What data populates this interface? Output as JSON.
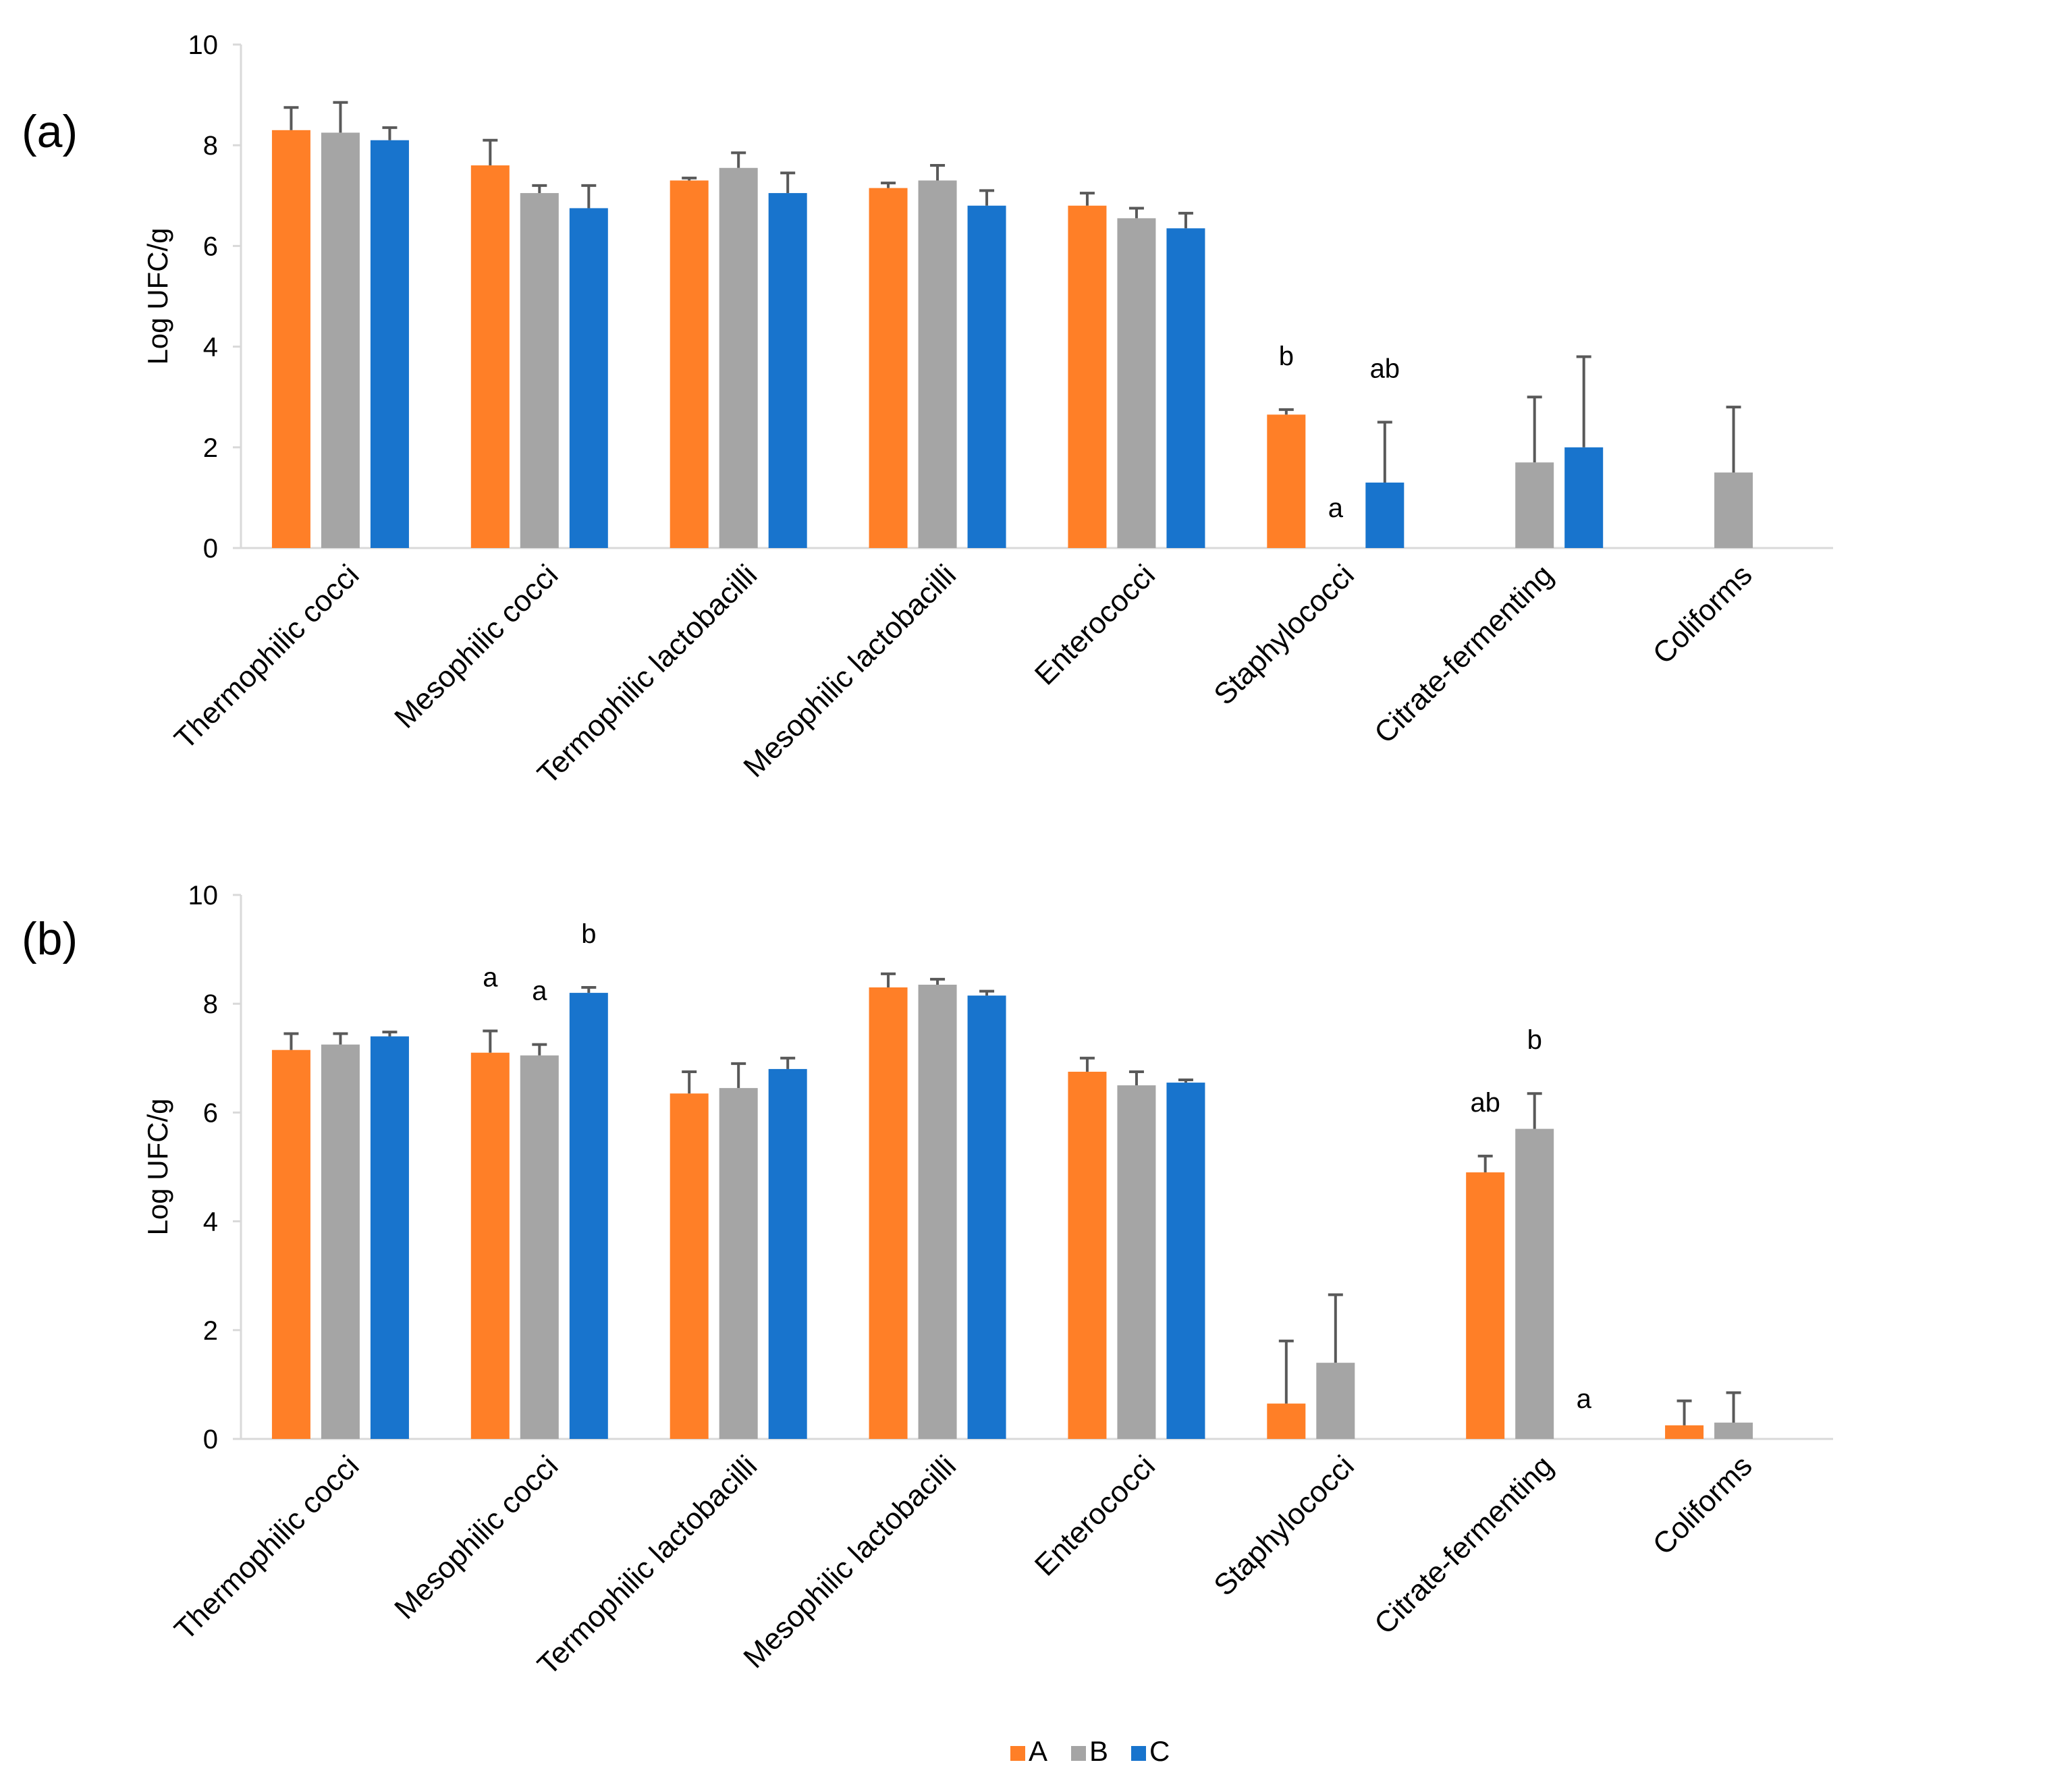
{
  "legend": [
    {
      "name": "A",
      "color": "#FF7F27"
    },
    {
      "name": "B",
      "color": "#A5A5A5"
    },
    {
      "name": "C",
      "color": "#1874CD"
    }
  ],
  "errorbar_color": "#595959",
  "axis_color": "#D9D9D9",
  "chart_data": [
    {
      "panel_label": "(a)",
      "type": "bar",
      "ylabel": "Log UFC/g",
      "ylim": [
        0,
        10
      ],
      "yticks": [
        "0",
        "2",
        "4",
        "6",
        "8",
        "10"
      ],
      "categories": [
        "Thermophilic cocci",
        "Mesophilic cocci",
        "Termophilic lactobacilli",
        "Mesophilic lactobacilli",
        "Enterococci",
        "Staphylococci",
        "Citrate-fermenting",
        "Coliforms"
      ],
      "series": [
        {
          "name": "A",
          "values": [
            8.3,
            7.6,
            7.3,
            7.15,
            6.8,
            2.65,
            0,
            0
          ],
          "errors": [
            0.45,
            0.5,
            0.05,
            0.1,
            0.25,
            0.1,
            0,
            0
          ],
          "annotations": [
            "",
            "",
            "",
            "",
            "",
            "b",
            "",
            ""
          ]
        },
        {
          "name": "B",
          "values": [
            8.25,
            7.05,
            7.55,
            7.3,
            6.55,
            0,
            1.7,
            1.5
          ],
          "errors": [
            0.6,
            0.15,
            0.3,
            0.3,
            0.2,
            0,
            1.3,
            1.3
          ],
          "annotations": [
            "",
            "",
            "",
            "",
            "",
            "a",
            "",
            ""
          ]
        },
        {
          "name": "C",
          "values": [
            8.1,
            6.75,
            7.05,
            6.8,
            6.35,
            1.3,
            2.0,
            0
          ],
          "errors": [
            0.25,
            0.45,
            0.4,
            0.3,
            0.3,
            1.2,
            1.8,
            0
          ],
          "annotations": [
            "",
            "",
            "",
            "",
            "",
            "ab",
            "",
            ""
          ]
        }
      ]
    },
    {
      "panel_label": "(b)",
      "type": "bar",
      "ylabel": "Log UFC/g",
      "ylim": [
        0,
        10
      ],
      "yticks": [
        "0",
        "2",
        "4",
        "6",
        "8",
        "10"
      ],
      "categories": [
        "Thermophilic cocci",
        "Mesophilic cocci",
        "Termophilic lactobacilli",
        "Mesophilic lactobacilli",
        "Enterococci",
        "Staphylococci",
        "Citrate-fermenting",
        "Coliforms"
      ],
      "series": [
        {
          "name": "A",
          "values": [
            7.15,
            7.1,
            6.35,
            8.3,
            6.75,
            0.65,
            4.9,
            0.25
          ],
          "errors": [
            0.3,
            0.4,
            0.4,
            0.25,
            0.25,
            1.15,
            0.3,
            0.45
          ],
          "annotations": [
            "",
            "a",
            "",
            "",
            "",
            "",
            "ab",
            ""
          ]
        },
        {
          "name": "B",
          "values": [
            7.25,
            7.05,
            6.45,
            8.35,
            6.5,
            1.4,
            5.7,
            0.3
          ],
          "errors": [
            0.2,
            0.2,
            0.45,
            0.1,
            0.25,
            1.25,
            0.65,
            0.55
          ],
          "annotations": [
            "",
            "a",
            "",
            "",
            "",
            "",
            "b",
            ""
          ]
        },
        {
          "name": "C",
          "values": [
            7.4,
            8.2,
            6.8,
            8.15,
            6.55,
            0,
            0,
            0
          ],
          "errors": [
            0.08,
            0.1,
            0.2,
            0.08,
            0.05,
            0,
            0,
            0
          ],
          "annotations": [
            "",
            "b",
            "",
            "",
            "",
            "",
            "a",
            ""
          ]
        }
      ]
    }
  ]
}
